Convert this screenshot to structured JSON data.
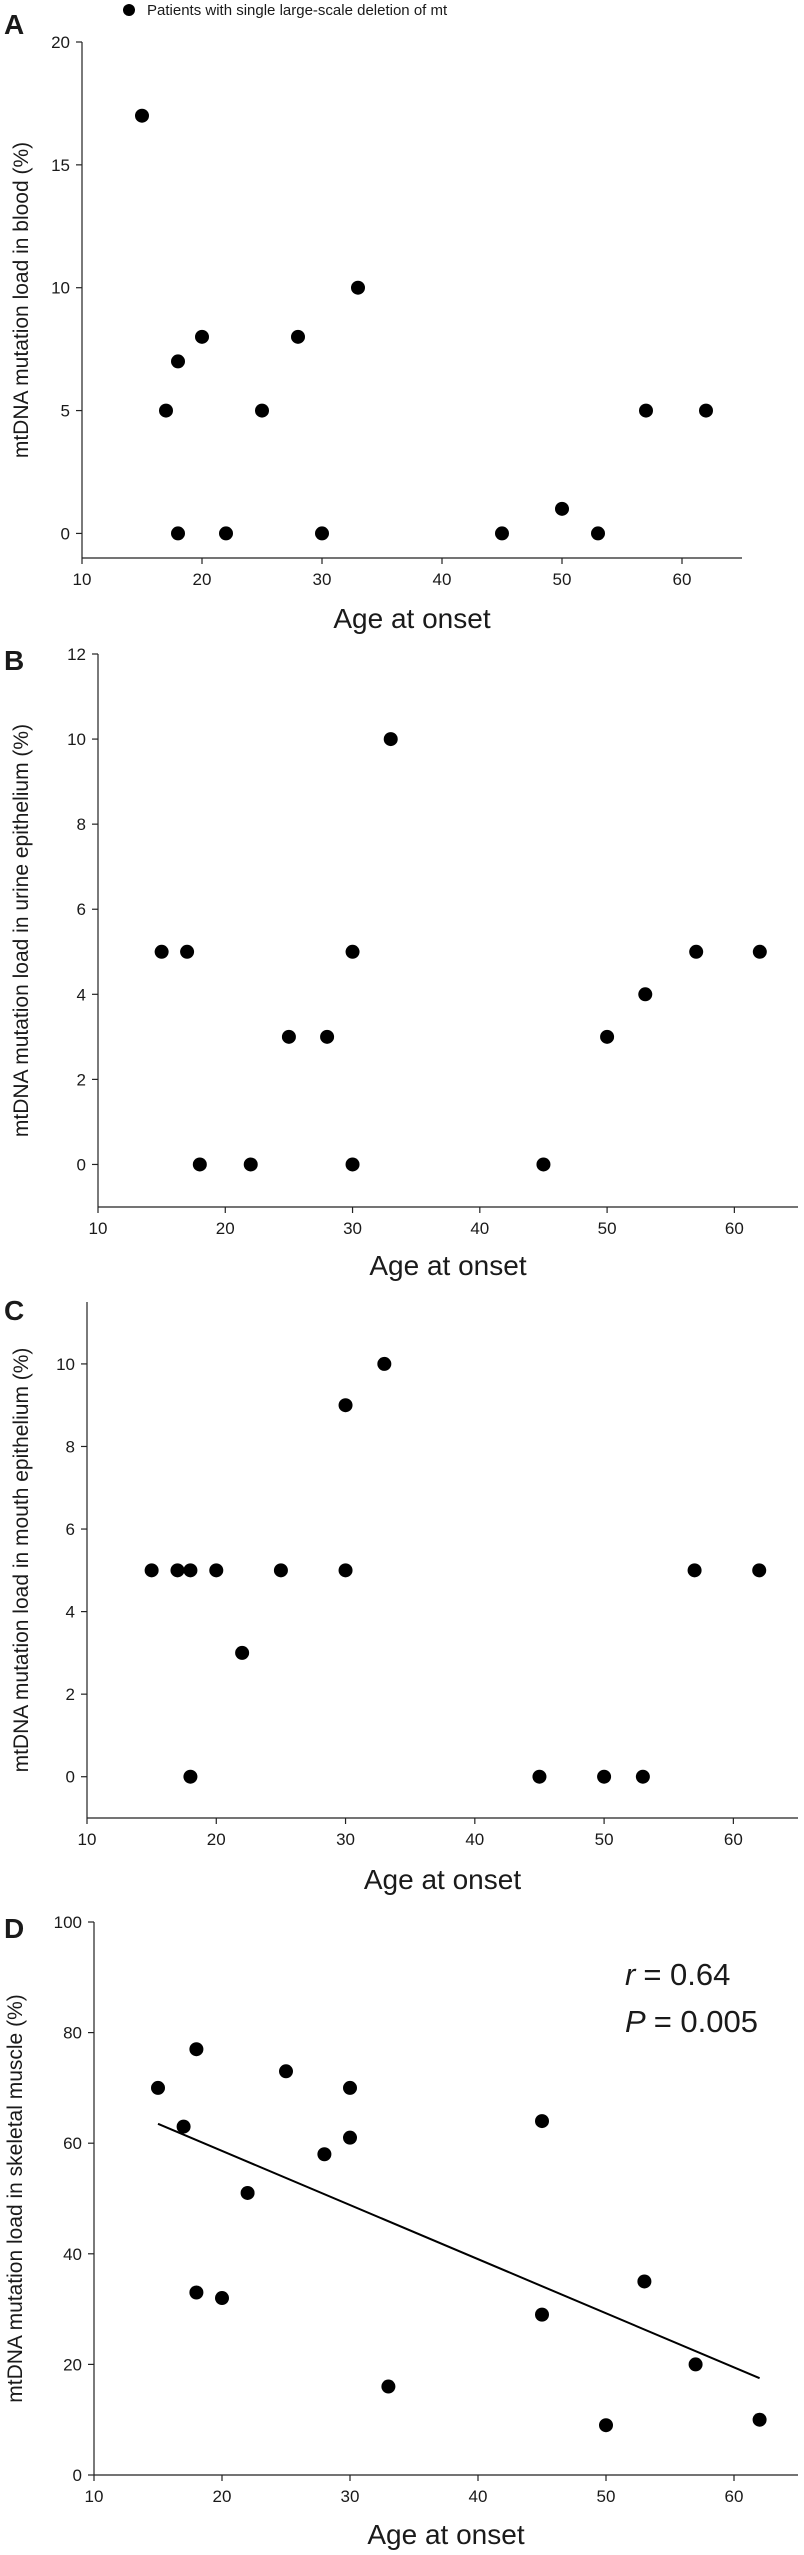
{
  "legend": {
    "label": "Patients with single large-scale deletion of mt"
  },
  "chart_data": [
    {
      "panel": "A",
      "type": "scatter",
      "title": "",
      "xlabel": "Age at onset",
      "ylabel": "mtDNA mutation load in blood (%)",
      "xlim": [
        10,
        65
      ],
      "ylim": [
        -1,
        20
      ],
      "xticks": [
        10,
        20,
        30,
        40,
        50,
        60
      ],
      "yticks": [
        0,
        5,
        10,
        15,
        20
      ],
      "points": [
        {
          "x": 15,
          "y": 17
        },
        {
          "x": 17,
          "y": 5
        },
        {
          "x": 18,
          "y": 7
        },
        {
          "x": 18,
          "y": 0
        },
        {
          "x": 20,
          "y": 8
        },
        {
          "x": 22,
          "y": 0
        },
        {
          "x": 25,
          "y": 5
        },
        {
          "x": 28,
          "y": 8
        },
        {
          "x": 30,
          "y": 0
        },
        {
          "x": 33,
          "y": 10
        },
        {
          "x": 45,
          "y": 0
        },
        {
          "x": 50,
          "y": 1
        },
        {
          "x": 53,
          "y": 0
        },
        {
          "x": 57,
          "y": 5
        },
        {
          "x": 62,
          "y": 5
        }
      ]
    },
    {
      "panel": "B",
      "type": "scatter",
      "title": "",
      "xlabel": "Age at onset",
      "ylabel": "mtDNA mutation load in urine epithelium (%)",
      "xlim": [
        10,
        65
      ],
      "ylim": [
        -1,
        12
      ],
      "xticks": [
        10,
        20,
        30,
        40,
        50,
        60
      ],
      "yticks": [
        0,
        2,
        4,
        6,
        8,
        10,
        12
      ],
      "points": [
        {
          "x": 15,
          "y": 5
        },
        {
          "x": 17,
          "y": 5
        },
        {
          "x": 18,
          "y": 0
        },
        {
          "x": 22,
          "y": 0
        },
        {
          "x": 25,
          "y": 3
        },
        {
          "x": 28,
          "y": 3
        },
        {
          "x": 30,
          "y": 5
        },
        {
          "x": 30,
          "y": 0
        },
        {
          "x": 33,
          "y": 10
        },
        {
          "x": 45,
          "y": 0
        },
        {
          "x": 50,
          "y": 3
        },
        {
          "x": 53,
          "y": 4
        },
        {
          "x": 57,
          "y": 5
        },
        {
          "x": 62,
          "y": 5
        }
      ]
    },
    {
      "panel": "C",
      "type": "scatter",
      "title": "",
      "xlabel": "Age at onset",
      "ylabel": "mtDNA mutation load in mouth epithelium (%)",
      "xlim": [
        10,
        65
      ],
      "ylim": [
        -1,
        11.5
      ],
      "xticks": [
        10,
        20,
        30,
        40,
        50,
        60
      ],
      "yticks": [
        0,
        2,
        4,
        6,
        8,
        10
      ],
      "points": [
        {
          "x": 15,
          "y": 5
        },
        {
          "x": 17,
          "y": 5
        },
        {
          "x": 18,
          "y": 5
        },
        {
          "x": 18,
          "y": 0
        },
        {
          "x": 20,
          "y": 5
        },
        {
          "x": 22,
          "y": 3
        },
        {
          "x": 25,
          "y": 5
        },
        {
          "x": 30,
          "y": 9
        },
        {
          "x": 30,
          "y": 5
        },
        {
          "x": 33,
          "y": 10
        },
        {
          "x": 45,
          "y": 0
        },
        {
          "x": 50,
          "y": 0
        },
        {
          "x": 53,
          "y": 0
        },
        {
          "x": 57,
          "y": 5
        },
        {
          "x": 62,
          "y": 5
        }
      ]
    },
    {
      "panel": "D",
      "type": "scatter",
      "title": "",
      "xlabel": "Age at onset",
      "ylabel": "mtDNA mutation load in skeletal muscle (%)",
      "xlim": [
        10,
        65
      ],
      "ylim": [
        0,
        100
      ],
      "xticks": [
        10,
        20,
        30,
        40,
        50,
        60
      ],
      "yticks": [
        0,
        20,
        40,
        60,
        80,
        100
      ],
      "points": [
        {
          "x": 15,
          "y": 70
        },
        {
          "x": 17,
          "y": 63
        },
        {
          "x": 18,
          "y": 77
        },
        {
          "x": 18,
          "y": 33
        },
        {
          "x": 20,
          "y": 32
        },
        {
          "x": 22,
          "y": 51
        },
        {
          "x": 25,
          "y": 73
        },
        {
          "x": 28,
          "y": 58
        },
        {
          "x": 30,
          "y": 70
        },
        {
          "x": 30,
          "y": 61
        },
        {
          "x": 33,
          "y": 16
        },
        {
          "x": 45,
          "y": 64
        },
        {
          "x": 45,
          "y": 29
        },
        {
          "x": 50,
          "y": 9
        },
        {
          "x": 53,
          "y": 35
        },
        {
          "x": 57,
          "y": 20
        },
        {
          "x": 62,
          "y": 10
        }
      ],
      "trendline": {
        "x": [
          15,
          62
        ],
        "y": [
          63.5,
          17.5
        ]
      },
      "stats": {
        "r_symbol": "r",
        "r_value": "= 0.64",
        "p_symbol": "P",
        "p_value": "= 0.005"
      }
    }
  ]
}
